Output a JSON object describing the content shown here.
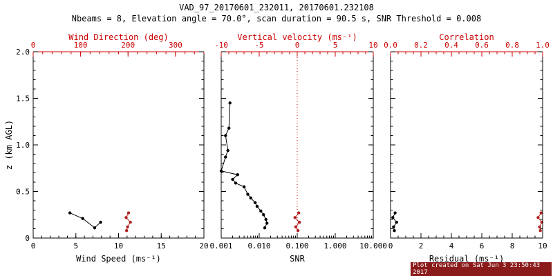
{
  "header": {
    "title": "VAD_97_20170601_232011, 20170601.232108",
    "subtitle": "Nbeams = 8, Elevation angle = 70.0°, scan duration = 90.5 s, SNR Threshold = 0.008"
  },
  "footer": {
    "text": "Plot created on Sat Jun  3 23:50:43 2017"
  },
  "colors": {
    "primary_axis": "#000000",
    "secondary_axis": "#cc0000",
    "black_series": "#000000",
    "red_series": "#b22222",
    "footer_bg": "#8b1a1a",
    "footer_fg": "#ffffff"
  },
  "chart_data": [
    {
      "type": "scatter",
      "panel": "wind",
      "y_axis": {
        "label": "z (km AGL)",
        "lim": [
          0,
          2
        ],
        "tick_values": [
          0,
          0.5,
          1,
          1.5,
          2
        ],
        "tick_labels": [
          "0",
          "0.5",
          "1.0",
          "1.5",
          "2.0"
        ],
        "minor": 0.1,
        "show_labels": true
      },
      "bottom_axis": {
        "label": "Wind Speed (ms⁻¹)",
        "lim": [
          0,
          20
        ],
        "scale": "linear",
        "tick_values": [
          0,
          5,
          10,
          15,
          20
        ],
        "tick_labels": [
          "0",
          "5",
          "10",
          "15",
          "20"
        ],
        "minor": 1,
        "color": "#000000"
      },
      "top_axis": {
        "label": "Wind Direction (deg)",
        "lim": [
          0,
          360
        ],
        "scale": "linear",
        "tick_values": [
          0,
          100,
          200,
          300
        ],
        "tick_labels": [
          "0",
          "100",
          "200",
          "300"
        ],
        "minor": 20,
        "color": "#cc0000"
      },
      "series": [
        {
          "name": "wind-speed",
          "axis": "bottom",
          "color": "#000000",
          "marker": true,
          "line": true,
          "points": [
            [
              4.3,
              0.27
            ],
            [
              5.8,
              0.21
            ],
            [
              7.2,
              0.11
            ],
            [
              7.9,
              0.17
            ]
          ]
        },
        {
          "name": "wind-direction",
          "axis": "top",
          "color": "#b22222",
          "marker": true,
          "line": true,
          "points": [
            [
              201,
              0.27
            ],
            [
              196,
              0.22
            ],
            [
              205,
              0.17
            ],
            [
              199,
              0.12
            ],
            [
              197,
              0.08
            ]
          ]
        }
      ]
    },
    {
      "type": "scatter",
      "panel": "snr",
      "y_axis": {
        "label": "",
        "lim": [
          0,
          2
        ],
        "tick_values": [
          0,
          0.5,
          1,
          1.5,
          2
        ],
        "tick_labels": [],
        "minor": 0.1,
        "show_labels": false
      },
      "bottom_axis": {
        "label": "SNR",
        "lim": [
          0.001,
          10
        ],
        "scale": "log",
        "tick_values": [
          0.001,
          0.01,
          0.1,
          1,
          10
        ],
        "tick_labels": [
          "0.001",
          "0.010",
          "0.100",
          "1.000",
          "10.000"
        ],
        "color": "#000000"
      },
      "top_axis": {
        "label": "Vertical velocity (ms⁻¹)",
        "lim": [
          -10,
          10
        ],
        "scale": "linear",
        "tick_values": [
          -10,
          -5,
          0,
          5,
          10
        ],
        "tick_labels": [
          "-10",
          "-5",
          "0",
          "5",
          "10"
        ],
        "minor": 1,
        "color": "#cc0000"
      },
      "ref_line": {
        "axis": "top",
        "value": 0,
        "color": "#cc0000",
        "style": "dotted"
      },
      "series": [
        {
          "name": "snr-profile",
          "axis": "bottom",
          "color": "#000000",
          "marker": true,
          "line": true,
          "points": [
            [
              0.0017,
              1.45
            ],
            [
              0.0016,
              1.18
            ],
            [
              0.0013,
              1.1
            ],
            [
              0.0015,
              0.94
            ],
            [
              0.0013,
              0.87
            ],
            [
              0.001,
              0.72
            ],
            [
              0.0027,
              0.68
            ],
            [
              0.002,
              0.63
            ],
            [
              0.0024,
              0.59
            ],
            [
              0.004,
              0.55
            ],
            [
              0.005,
              0.47
            ],
            [
              0.006,
              0.43
            ],
            [
              0.0078,
              0.38
            ],
            [
              0.0088,
              0.34
            ],
            [
              0.011,
              0.29
            ],
            [
              0.013,
              0.25
            ],
            [
              0.015,
              0.2
            ],
            [
              0.016,
              0.16
            ],
            [
              0.014,
              0.11
            ]
          ]
        },
        {
          "name": "vertical-velocity",
          "axis": "top",
          "color": "#b22222",
          "marker": true,
          "line": true,
          "points": [
            [
              0.2,
              0.27
            ],
            [
              -0.3,
              0.22
            ],
            [
              0.3,
              0.17
            ],
            [
              -0.2,
              0.12
            ],
            [
              0.1,
              0.08
            ]
          ]
        }
      ]
    },
    {
      "type": "scatter",
      "panel": "residual",
      "y_axis": {
        "label": "",
        "lim": [
          0,
          2
        ],
        "tick_values": [
          0,
          0.5,
          1,
          1.5,
          2
        ],
        "tick_labels": [],
        "minor": 0.1,
        "show_labels": false
      },
      "bottom_axis": {
        "label": "Residual (ms⁻¹)",
        "lim": [
          0,
          10
        ],
        "scale": "linear",
        "tick_values": [
          0,
          2,
          4,
          6,
          8,
          10
        ],
        "tick_labels": [
          "0",
          "2",
          "4",
          "6",
          "8",
          "10"
        ],
        "minor": 0.5,
        "color": "#000000"
      },
      "top_axis": {
        "label": "Correlation",
        "lim": [
          0,
          1
        ],
        "scale": "linear",
        "tick_values": [
          0,
          0.2,
          0.4,
          0.6,
          0.8,
          1
        ],
        "tick_labels": [
          "0.0",
          "0.2",
          "0.4",
          "0.6",
          "0.8",
          "1.0"
        ],
        "minor": 0.05,
        "color": "#cc0000"
      },
      "series": [
        {
          "name": "residual",
          "axis": "bottom",
          "color": "#000000",
          "marker": true,
          "line": true,
          "points": [
            [
              0.3,
              0.27
            ],
            [
              0.15,
              0.22
            ],
            [
              0.4,
              0.17
            ],
            [
              0.2,
              0.12
            ],
            [
              0.25,
              0.08
            ]
          ]
        },
        {
          "name": "correlation",
          "axis": "top",
          "color": "#b22222",
          "marker": true,
          "line": true,
          "points": [
            [
              0.99,
              0.27
            ],
            [
              0.97,
              0.22
            ],
            [
              0.995,
              0.17
            ],
            [
              0.98,
              0.12
            ],
            [
              0.985,
              0.08
            ]
          ]
        }
      ]
    }
  ]
}
